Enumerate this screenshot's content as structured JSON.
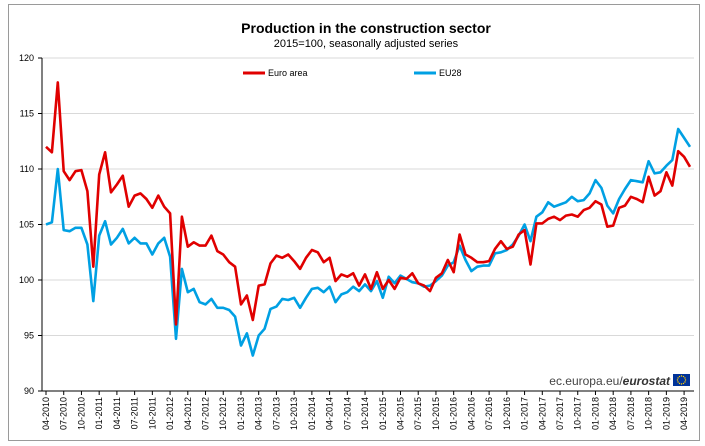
{
  "chart_data": {
    "type": "line",
    "title": "Production in the construction sector",
    "subtitle": "2015=100, seasonally adjusted series",
    "xlabel": "",
    "ylabel": "",
    "ylim": [
      90,
      120
    ],
    "yticks": [
      90,
      95,
      100,
      105,
      110,
      115,
      120
    ],
    "xticks": [
      "04-2010",
      "07-2010",
      "10-2010",
      "01-2011",
      "04-2011",
      "07-2011",
      "10-2011",
      "01-2012",
      "04-2012",
      "07-2012",
      "10-2012",
      "01-2013",
      "04-2013",
      "07-2013",
      "10-2013",
      "01-2014",
      "04-2014",
      "07-2014",
      "10-2014",
      "01-2015",
      "04-2015",
      "07-2015",
      "10-2015",
      "01-2016",
      "04-2016",
      "07-2016",
      "10-2016",
      "01-2017",
      "04-2017",
      "07-2017",
      "10-2017",
      "01-2018",
      "04-2018",
      "07-2018",
      "10-2018",
      "01-2019",
      "04-2019"
    ],
    "x_start": "04-2010",
    "series": [
      {
        "name": "Euro area",
        "color": "#e00000",
        "values": [
          112.0,
          111.5,
          117.8,
          109.8,
          109.0,
          109.8,
          109.9,
          108.0,
          101.2,
          109.5,
          111.5,
          107.9,
          108.6,
          109.4,
          106.6,
          107.6,
          107.8,
          107.3,
          106.5,
          107.6,
          106.6,
          106.0,
          96.0,
          105.7,
          103.0,
          103.4,
          103.1,
          103.1,
          104.0,
          102.6,
          102.3,
          101.6,
          101.2,
          97.8,
          98.6,
          96.4,
          99.5,
          99.6,
          101.5,
          102.2,
          102.0,
          102.3,
          101.7,
          101.0,
          102.0,
          102.7,
          102.5,
          101.6,
          102.0,
          99.9,
          100.5,
          100.3,
          100.6,
          99.5,
          100.5,
          99.2,
          100.7,
          99.2,
          100.0,
          99.2,
          100.2,
          100.1,
          100.6,
          99.7,
          99.5,
          99.0,
          100.2,
          100.6,
          101.8,
          100.7,
          104.1,
          102.3,
          102.0,
          101.6,
          101.6,
          101.7,
          102.8,
          103.5,
          102.8,
          103.0,
          104.1,
          104.5,
          101.4,
          105.1,
          105.1,
          105.5,
          105.7,
          105.4,
          105.8,
          105.9,
          105.7,
          106.3,
          106.5,
          107.1,
          106.8,
          104.8,
          104.9,
          106.5,
          106.7,
          107.5,
          107.3,
          107.0,
          109.3,
          107.6,
          108.0,
          109.7,
          108.5,
          111.6,
          111.1,
          110.2
        ]
      },
      {
        "name": "EU28",
        "color": "#00a0e3",
        "values": [
          105.0,
          105.2,
          110.0,
          104.5,
          104.4,
          104.7,
          104.7,
          103.2,
          98.1,
          104.0,
          105.3,
          103.2,
          103.8,
          104.6,
          103.3,
          103.8,
          103.3,
          103.3,
          102.3,
          103.3,
          103.8,
          102.1,
          94.7,
          101.0,
          98.9,
          99.2,
          98.0,
          97.8,
          98.3,
          97.5,
          97.5,
          97.3,
          96.7,
          94.1,
          95.2,
          93.2,
          95.0,
          95.6,
          97.4,
          97.6,
          98.3,
          98.2,
          98.4,
          97.5,
          98.4,
          99.2,
          99.3,
          98.9,
          99.4,
          98.0,
          98.7,
          98.9,
          99.4,
          99.0,
          99.6,
          99.0,
          99.9,
          98.4,
          100.3,
          99.7,
          100.4,
          100.1,
          99.8,
          99.7,
          99.4,
          99.5,
          99.9,
          100.4,
          101.3,
          101.6,
          103.1,
          101.8,
          100.8,
          101.2,
          101.3,
          101.3,
          102.4,
          102.5,
          102.7,
          103.2,
          104.0,
          105.0,
          103.5,
          105.7,
          106.1,
          107.0,
          106.6,
          106.8,
          107.0,
          107.5,
          107.1,
          107.2,
          107.8,
          109.0,
          108.3,
          106.7,
          106.0,
          107.3,
          108.2,
          109.0,
          108.9,
          108.8,
          110.7,
          109.6,
          109.7,
          110.3,
          110.8,
          113.6,
          112.8,
          112.0
        ]
      }
    ],
    "legend": "top"
  },
  "source_prefix": "ec.europa.eu/",
  "source_brand": "eurostat",
  "colors": {
    "euro_area": "#e00000",
    "eu28": "#00a0e3",
    "flag": "#003399",
    "flag_star": "#ffcc00"
  }
}
